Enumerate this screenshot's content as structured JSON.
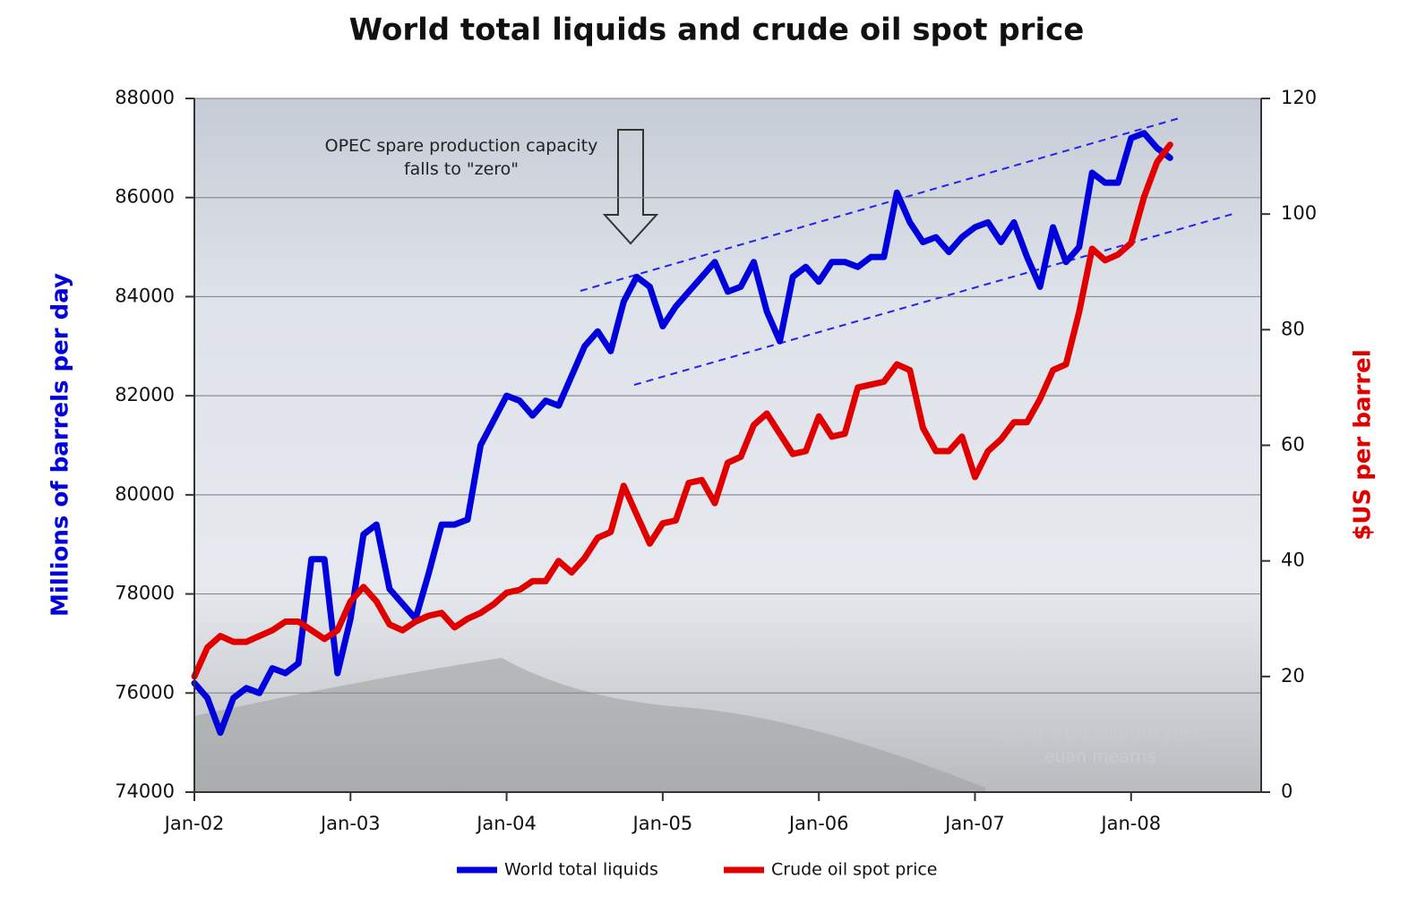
{
  "chart_data": {
    "type": "line",
    "title": "World total liquids and crude oil spot price",
    "ylabel": "Millions of barrels per day",
    "y2label": "$US per barrel",
    "annotation": "OPEC spare production capacity falls to \"zero\"",
    "watermark": [
      "europe.theoildrum.com",
      "euan mearns"
    ],
    "categories": [
      "Jan-02",
      null,
      null,
      null,
      null,
      null,
      null,
      null,
      null,
      null,
      null,
      null,
      "Jan-03",
      null,
      null,
      null,
      null,
      null,
      null,
      null,
      null,
      null,
      null,
      null,
      "Jan-04",
      null,
      null,
      null,
      null,
      null,
      null,
      null,
      null,
      null,
      null,
      null,
      "Jan-05",
      null,
      null,
      null,
      null,
      null,
      null,
      null,
      null,
      null,
      null,
      null,
      "Jan-06",
      null,
      null,
      null,
      null,
      null,
      null,
      null,
      null,
      null,
      null,
      null,
      "Jan-07",
      null,
      null,
      null,
      null,
      null,
      null,
      null,
      null,
      null,
      null,
      null,
      "Jan-08",
      null,
      null,
      null,
      null,
      null,
      null,
      null,
      null,
      null,
      null
    ],
    "series": [
      {
        "name": "World total liquids",
        "color": "#0000dd",
        "axis": "y",
        "values": [
          76200,
          75900,
          75200,
          75900,
          76100,
          76000,
          76500,
          76400,
          76600,
          78700,
          78700,
          76400,
          77500,
          79200,
          79400,
          78100,
          77800,
          77500,
          78400,
          79400,
          79400,
          79500,
          81000,
          81500,
          82000,
          81900,
          81600,
          81900,
          81800,
          82400,
          83000,
          83300,
          82900,
          83900,
          84400,
          84200,
          83400,
          83800,
          84100,
          84400,
          84700,
          84100,
          84200,
          84700,
          83700,
          83100,
          84400,
          84600,
          84300,
          84700,
          84700,
          84600,
          84800,
          84800,
          86100,
          85500,
          85100,
          85200,
          84900,
          85200,
          85400,
          85500,
          85100,
          85500,
          84800,
          84200,
          85400,
          84700,
          85000,
          86500,
          86300,
          86300,
          87200,
          87300,
          87000,
          86800,
          null,
          null,
          null,
          null,
          null,
          null,
          null
        ]
      },
      {
        "name": "Crude oil spot price",
        "color": "#e00000",
        "axis": "y2",
        "values": [
          20,
          25,
          27,
          26,
          26,
          27,
          28,
          29.5,
          29.5,
          28,
          26.5,
          28,
          33,
          35.5,
          33,
          29,
          28,
          29.5,
          30.5,
          31,
          28.5,
          30,
          31,
          32.5,
          34.5,
          35,
          36.5,
          36.5,
          40,
          38,
          40.5,
          44,
          45,
          53,
          48,
          43,
          46.5,
          47,
          53.5,
          54,
          50,
          57,
          58,
          63.5,
          65.5,
          62,
          58.5,
          59,
          65,
          61.5,
          62,
          70,
          70.5,
          71,
          74,
          73,
          63,
          59,
          59,
          61.5,
          54.5,
          59,
          61,
          64,
          64,
          68,
          73,
          74,
          83,
          94,
          92,
          93,
          95,
          103,
          109,
          112,
          null,
          null,
          null,
          null,
          null,
          null,
          null
        ]
      }
    ],
    "ylim": [
      74000,
      88000
    ],
    "yticks": [
      74000,
      76000,
      78000,
      80000,
      82000,
      84000,
      86000,
      88000
    ],
    "y2lim": [
      0,
      120
    ],
    "y2ticks": [
      0,
      20,
      40,
      60,
      80,
      100,
      120
    ],
    "grid": true
  }
}
